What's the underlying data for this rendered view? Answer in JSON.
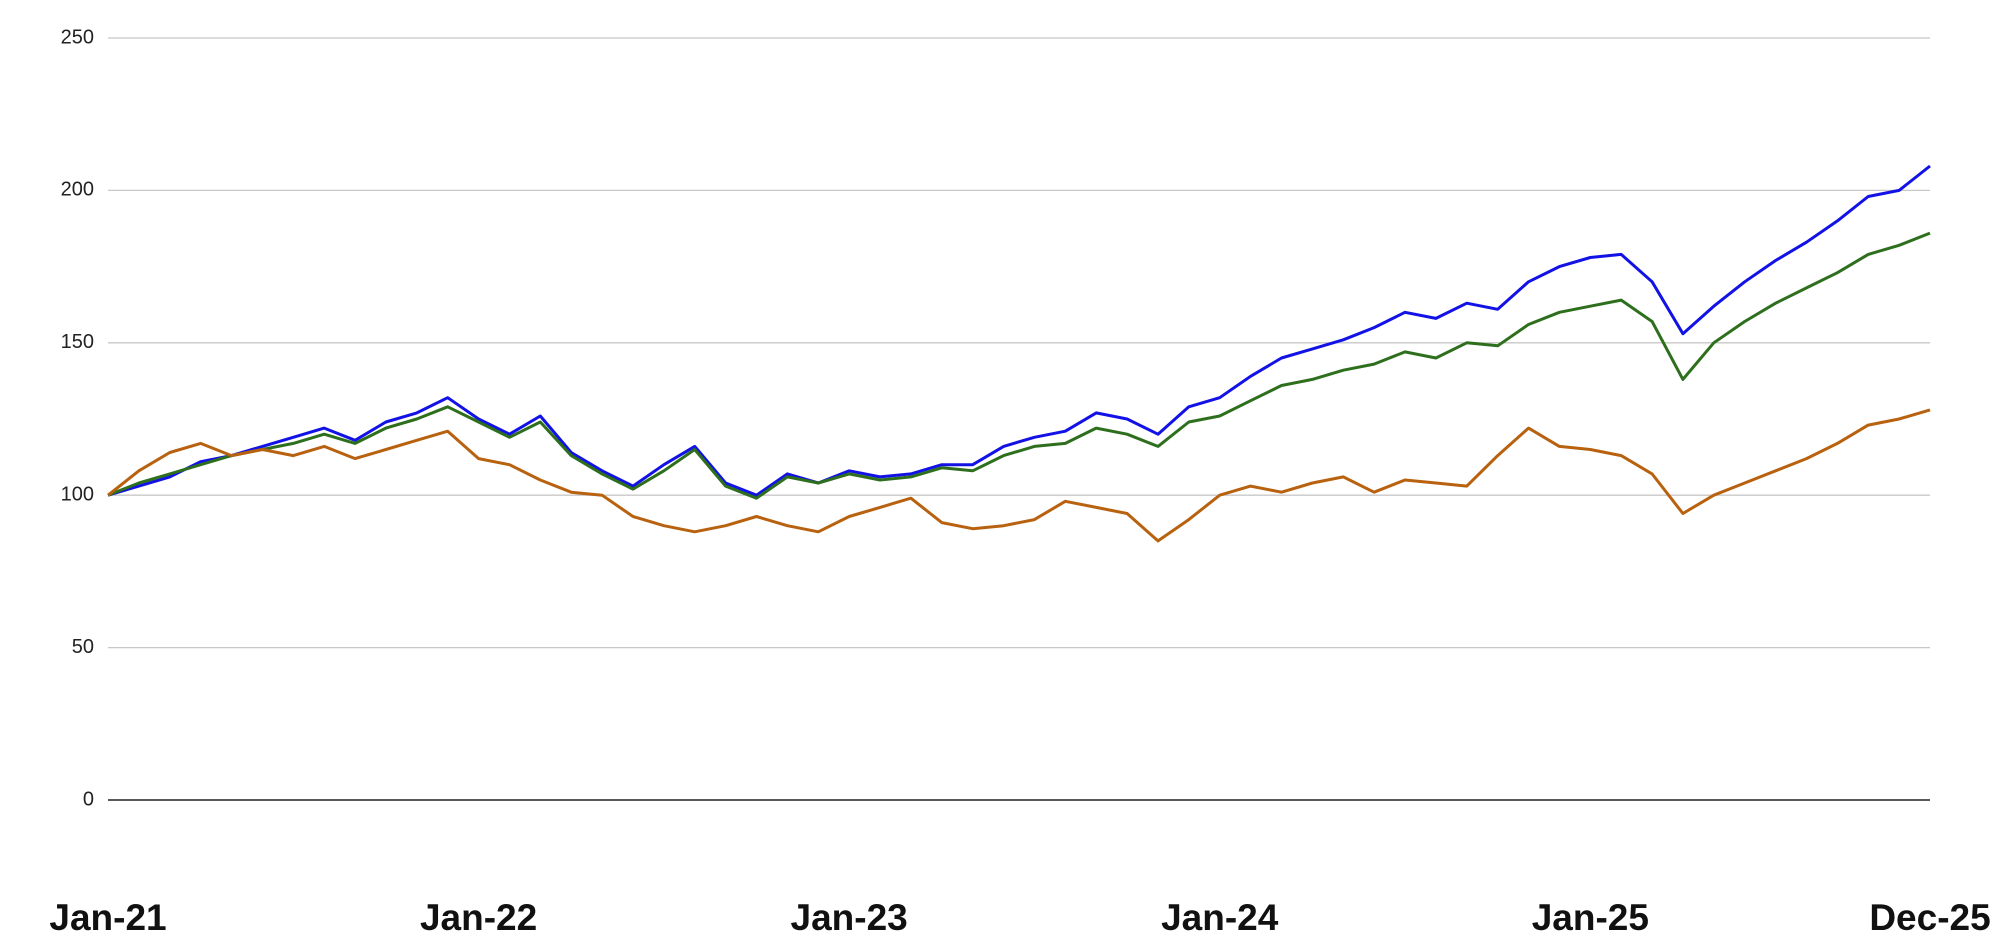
{
  "chart_data": {
    "type": "line",
    "categories": [
      "Jan-21",
      null,
      null,
      null,
      null,
      null,
      null,
      null,
      null,
      null,
      null,
      null,
      "Jan-22",
      null,
      null,
      null,
      null,
      null,
      null,
      null,
      null,
      null,
      null,
      null,
      "Jan-23",
      null,
      null,
      null,
      null,
      null,
      null,
      null,
      null,
      null,
      null,
      null,
      "Jan-24",
      null,
      null,
      null,
      null,
      null,
      null,
      null,
      null,
      null,
      null,
      null,
      "Jan-25",
      null,
      null,
      null,
      null,
      null,
      null,
      null,
      null,
      null,
      null,
      "Dec-25"
    ],
    "series": [
      {
        "color": "#1212e6",
        "values": [
          100,
          103,
          106,
          111,
          113,
          116,
          119,
          122,
          118,
          124,
          127,
          132,
          125,
          120,
          126,
          114,
          108,
          103,
          110,
          116,
          104,
          100,
          107,
          104,
          108,
          106,
          107,
          110,
          110,
          116,
          119,
          121,
          127,
          125,
          120,
          129,
          132,
          139,
          145,
          148,
          151,
          155,
          160,
          158,
          163,
          161,
          170,
          175,
          178,
          179,
          170,
          153,
          162,
          170,
          177,
          183,
          190,
          198,
          200,
          208
        ]
      },
      {
        "color": "#2e6f1e",
        "values": [
          100,
          104,
          107,
          110,
          113,
          115,
          117,
          120,
          117,
          122,
          125,
          129,
          124,
          119,
          124,
          113,
          107,
          102,
          108,
          115,
          103,
          99,
          106,
          104,
          107,
          105,
          106,
          109,
          108,
          113,
          116,
          117,
          122,
          120,
          116,
          124,
          126,
          131,
          136,
          138,
          141,
          143,
          147,
          145,
          150,
          149,
          156,
          160,
          162,
          164,
          157,
          138,
          150,
          157,
          163,
          168,
          173,
          179,
          182,
          186
        ]
      },
      {
        "color": "#b8620f",
        "values": [
          100,
          108,
          114,
          117,
          113,
          115,
          113,
          116,
          112,
          115,
          118,
          121,
          112,
          110,
          105,
          101,
          100,
          93,
          90,
          88,
          90,
          93,
          90,
          88,
          93,
          96,
          99,
          91,
          89,
          90,
          92,
          98,
          96,
          94,
          85,
          92,
          100,
          103,
          101,
          104,
          106,
          101,
          105,
          104,
          103,
          113,
          122,
          116,
          115,
          113,
          107,
          94,
          100,
          104,
          108,
          112,
          117,
          123,
          125,
          128
        ]
      }
    ],
    "ylim": [
      0,
      250
    ],
    "yticks": [
      0,
      50,
      100,
      150,
      200,
      250
    ],
    "grid": true
  }
}
